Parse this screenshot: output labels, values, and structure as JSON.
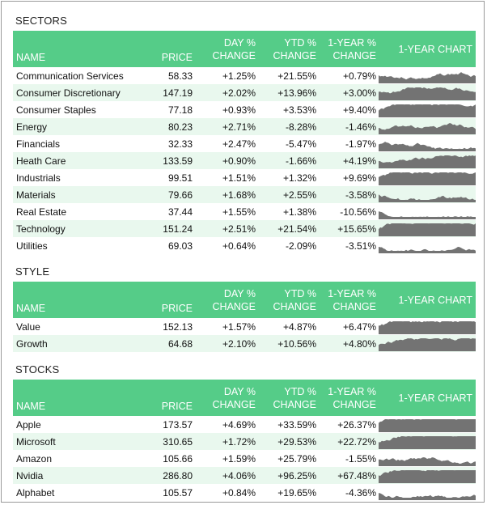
{
  "columns": {
    "name": "NAME",
    "price": "PRICE",
    "day_1": "DAY %",
    "day_2": "CHANGE",
    "ytd_1": "YTD %",
    "ytd_2": "CHANGE",
    "year_1": "1-YEAR %",
    "year_2": "CHANGE",
    "chart": "1-YEAR CHART"
  },
  "colors": {
    "header_bg": "#55cc88",
    "positive": "#3e7e55",
    "negative": "#e0242e",
    "chart_fill": "#737373",
    "row_alt": "#e9f8ee"
  },
  "sections": [
    {
      "title": "SECTORS",
      "rows": [
        {
          "name": "Communication Services",
          "price": "58.33",
          "day": "+1.25%",
          "ytd": "+21.55%",
          "year": "+0.79%"
        },
        {
          "name": "Consumer Discretionary",
          "price": "147.19",
          "day": "+2.02%",
          "ytd": "+13.96%",
          "year": "+3.00%"
        },
        {
          "name": "Consumer Staples",
          "price": "77.18",
          "day": "+0.93%",
          "ytd": "+3.53%",
          "year": "+9.40%"
        },
        {
          "name": "Energy",
          "price": "80.23",
          "day": "+2.71%",
          "ytd": "-8.28%",
          "year": "-1.46%"
        },
        {
          "name": "Financials",
          "price": "32.33",
          "day": "+2.47%",
          "ytd": "-5.47%",
          "year": "-1.97%"
        },
        {
          "name": "Heath Care",
          "price": "133.59",
          "day": "+0.90%",
          "ytd": "-1.66%",
          "year": "+4.19%"
        },
        {
          "name": "Industrials",
          "price": "99.51",
          "day": "+1.51%",
          "ytd": "+1.32%",
          "year": "+9.69%"
        },
        {
          "name": "Materials",
          "price": "79.66",
          "day": "+1.68%",
          "ytd": "+2.55%",
          "year": "-3.58%"
        },
        {
          "name": "Real Estate",
          "price": "37.44",
          "day": "+1.55%",
          "ytd": "+1.38%",
          "year": "-10.56%"
        },
        {
          "name": "Technology",
          "price": "151.24",
          "day": "+2.51%",
          "ytd": "+21.54%",
          "year": "+15.65%"
        },
        {
          "name": "Utilities",
          "price": "69.03",
          "day": "+0.64%",
          "ytd": "-2.09%",
          "year": "-3.51%"
        }
      ]
    },
    {
      "title": "STYLE",
      "rows": [
        {
          "name": "Value",
          "price": "152.13",
          "day": "+1.57%",
          "ytd": "+4.87%",
          "year": "+6.47%"
        },
        {
          "name": "Growth",
          "price": "64.68",
          "day": "+2.10%",
          "ytd": "+10.56%",
          "year": "+4.80%"
        }
      ]
    },
    {
      "title": "STOCKS",
      "rows": [
        {
          "name": "Apple",
          "price": "173.57",
          "day": "+4.69%",
          "ytd": "+33.59%",
          "year": "+26.37%"
        },
        {
          "name": "Microsoft",
          "price": "310.65",
          "day": "+1.72%",
          "ytd": "+29.53%",
          "year": "+22.72%"
        },
        {
          "name": "Amazon",
          "price": "105.66",
          "day": "+1.59%",
          "ytd": "+25.79%",
          "year": "-1.55%"
        },
        {
          "name": "Nvidia",
          "price": "286.80",
          "day": "+4.06%",
          "ytd": "+96.25%",
          "year": "+67.48%"
        },
        {
          "name": "Alphabet",
          "price": "105.57",
          "day": "+0.84%",
          "ytd": "+19.65%",
          "year": "-4.36%"
        }
      ]
    }
  ]
}
